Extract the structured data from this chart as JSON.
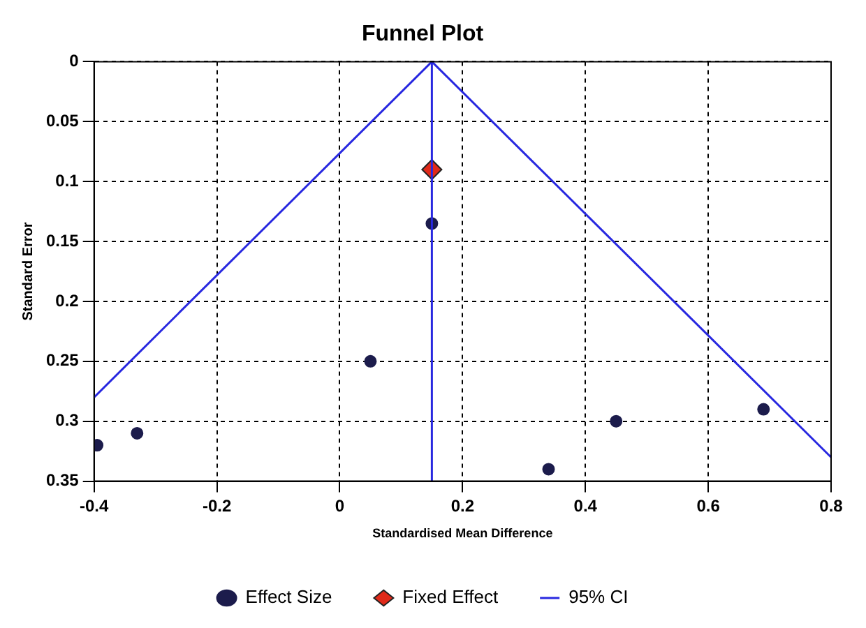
{
  "chart_data": {
    "type": "scatter",
    "title": "Funnel Plot",
    "xlabel": "Standardised Mean Difference",
    "ylabel": "Standard Error",
    "xlim": [
      -0.4,
      0.8
    ],
    "xticks": [
      -0.4,
      -0.2,
      0,
      0.2,
      0.4,
      0.6,
      0.8
    ],
    "ylim": [
      0.35,
      0
    ],
    "yticks": [
      0,
      0.05,
      0.1,
      0.15,
      0.2,
      0.25,
      0.3,
      0.35
    ],
    "grid": true,
    "legend": "bottom",
    "series": [
      {
        "name": "Effect Size",
        "type": "scatter",
        "marker": "circle",
        "color": "#1c1c4c",
        "x": [
          -0.395,
          -0.33,
          0.05,
          0.15,
          0.34,
          0.45,
          0.69
        ],
        "values": [
          0.32,
          0.31,
          0.25,
          0.135,
          0.34,
          0.3,
          0.29
        ]
      },
      {
        "name": "Fixed Effect",
        "type": "scatter",
        "marker": "diamond",
        "color": "#e02a1a",
        "x": [
          0.15
        ],
        "values": [
          0.09
        ]
      },
      {
        "name": "95% CI",
        "type": "line",
        "marker": "none",
        "line_style": "solid",
        "color": "#2828e0",
        "x": [
          -0.4,
          0.15,
          0.8
        ],
        "values": [
          0.28,
          0,
          0.33
        ]
      }
    ],
    "ref_lines": [
      {
        "axis": "x",
        "value": 0.15,
        "color": "#2828e0"
      }
    ]
  }
}
